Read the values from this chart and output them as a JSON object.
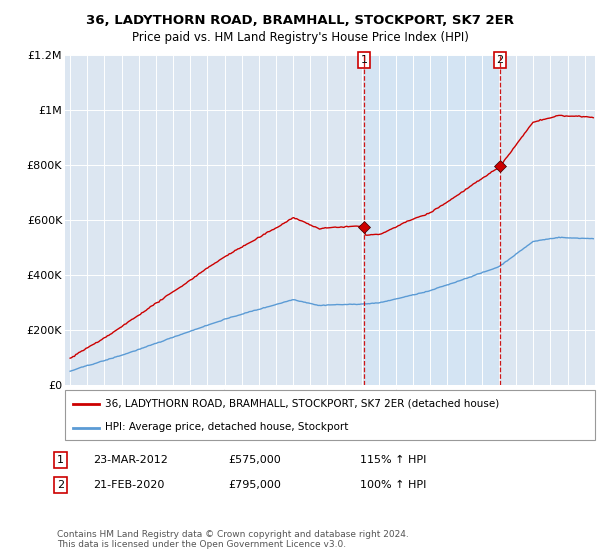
{
  "title": "36, LADYTHORN ROAD, BRAMHALL, STOCKPORT, SK7 2ER",
  "subtitle": "Price paid vs. HM Land Registry's House Price Index (HPI)",
  "legend_label_red": "36, LADYTHORN ROAD, BRAMHALL, STOCKPORT, SK7 2ER (detached house)",
  "legend_label_blue": "HPI: Average price, detached house, Stockport",
  "annotation1_label": "1",
  "annotation1_date": "23-MAR-2012",
  "annotation1_price": 575000,
  "annotation1_hpi": "115% ↑ HPI",
  "annotation2_label": "2",
  "annotation2_date": "21-FEB-2020",
  "annotation2_price": 795000,
  "annotation2_hpi": "100% ↑ HPI",
  "footer": "Contains HM Land Registry data © Crown copyright and database right 2024.\nThis data is licensed under the Open Government Licence v3.0.",
  "red_color": "#cc0000",
  "blue_color": "#5b9bd5",
  "bg_color": "#dce6f1",
  "shade_color": "#d0e4f5",
  "annotation_vline_color": "#cc0000",
  "ylim": [
    0,
    1200000
  ],
  "yticks": [
    0,
    200000,
    400000,
    600000,
    800000,
    1000000,
    1200000
  ],
  "ytick_labels": [
    "£0",
    "£200K",
    "£400K",
    "£600K",
    "£800K",
    "£1M",
    "£1.2M"
  ],
  "xstart": 1995,
  "xend": 2025
}
